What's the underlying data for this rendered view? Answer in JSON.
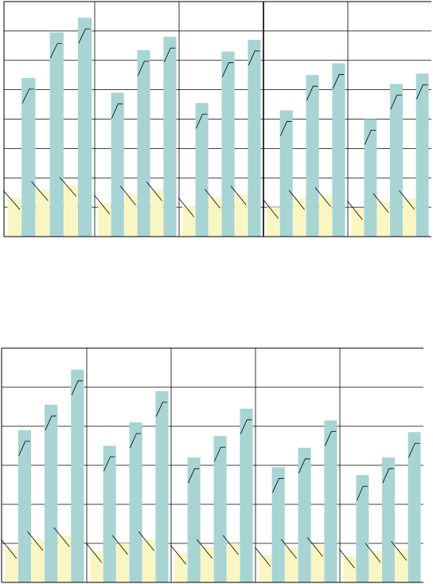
{
  "colors": {
    "teal": "#a8d4d4",
    "cream": "#faf6c4",
    "grid": "#000000",
    "background": "#ffffff"
  },
  "chart_data": [
    {
      "type": "bar",
      "title": "",
      "xlabel": "",
      "ylabel": "",
      "ylim": [
        0,
        8
      ],
      "grid": true,
      "legend": "none",
      "groups": 5,
      "series": [
        {
          "values": [
            1.3,
            1.15,
            1.05,
            1.0,
            0.95
          ],
          "color": "cream"
        },
        {
          "values": [
            5.4,
            4.9,
            4.55,
            4.3,
            4.0
          ],
          "color": "teal"
        },
        {
          "values": [
            1.6,
            1.45,
            1.35,
            1.3,
            1.2
          ],
          "color": "cream"
        },
        {
          "values": [
            6.95,
            6.35,
            6.3,
            5.5,
            5.2
          ],
          "color": "teal"
        },
        {
          "values": [
            1.75,
            1.6,
            1.45,
            1.4,
            1.3
          ],
          "color": "cream"
        },
        {
          "values": [
            7.45,
            6.8,
            6.7,
            5.9,
            5.55
          ],
          "color": "teal"
        }
      ]
    },
    {
      "type": "bar",
      "title": "",
      "xlabel": "",
      "ylabel": "",
      "ylim": [
        0,
        6
      ],
      "grid": true,
      "legend": "none",
      "groups": 5,
      "series": [
        {
          "values": [
            0.9,
            0.8,
            0.75,
            0.7,
            0.65
          ],
          "color": "cream"
        },
        {
          "values": [
            3.9,
            3.5,
            3.2,
            2.95,
            2.75
          ],
          "color": "teal"
        },
        {
          "values": [
            1.1,
            1.0,
            0.9,
            0.9,
            0.8
          ],
          "color": "cream"
        },
        {
          "values": [
            4.55,
            4.1,
            3.75,
            3.45,
            3.2
          ],
          "color": "teal"
        },
        {
          "values": [
            1.2,
            1.1,
            1.0,
            0.95,
            0.85
          ],
          "color": "cream"
        },
        {
          "values": [
            5.45,
            4.9,
            4.45,
            4.15,
            3.85
          ],
          "color": "teal"
        }
      ]
    }
  ]
}
